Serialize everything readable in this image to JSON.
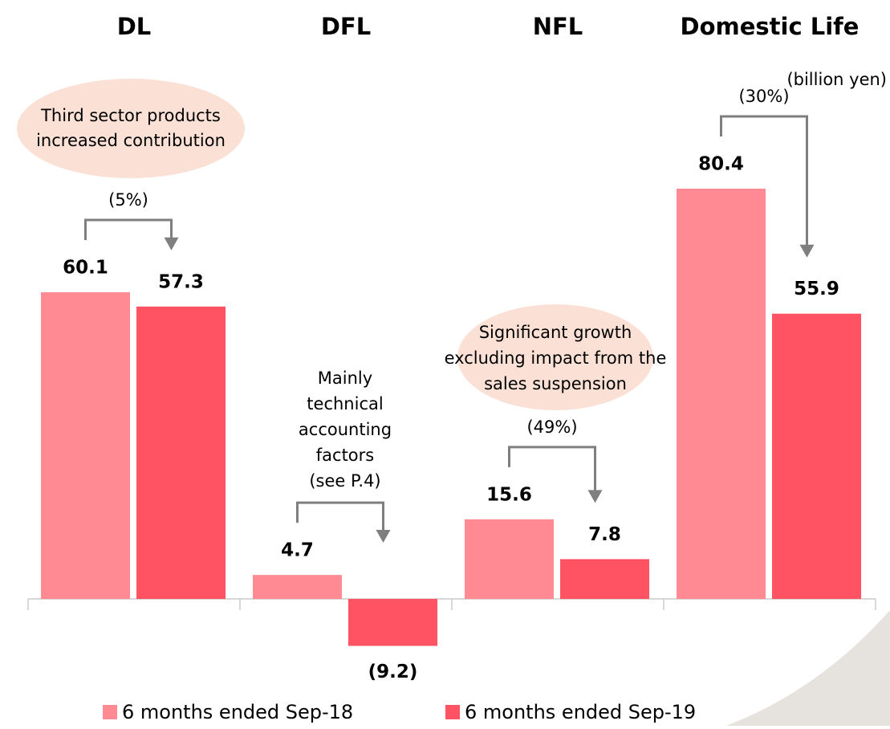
{
  "chart_data": {
    "type": "bar",
    "categories": [
      "DL",
      "DFL",
      "NFL",
      "Domestic Life"
    ],
    "unit_label": "(billion yen)",
    "series": [
      {
        "name": "6 months ended Sep-18",
        "color": "#ff8a93",
        "values": [
          60.1,
          4.7,
          15.6,
          80.4
        ]
      },
      {
        "name": "6 months ended Sep-19",
        "color": "#ff5262",
        "values": [
          57.3,
          -9.2,
          7.8,
          55.9
        ],
        "value_labels": [
          "57.3",
          "(9.2)",
          "7.8",
          "55.9"
        ]
      }
    ],
    "changes": [
      "(5%)",
      null,
      "(49%)",
      "(30%)"
    ],
    "callouts": [
      {
        "lines": [
          "Third sector products",
          "increased contribution"
        ]
      },
      {
        "lines": [
          "Mainly",
          "technical",
          "accounting",
          "factors",
          "(see P.4)"
        ]
      },
      {
        "lines": [
          "Significant growth",
          "excluding impact from the",
          "sales suspension"
        ]
      }
    ],
    "ylim": [
      -10,
      90
    ]
  }
}
